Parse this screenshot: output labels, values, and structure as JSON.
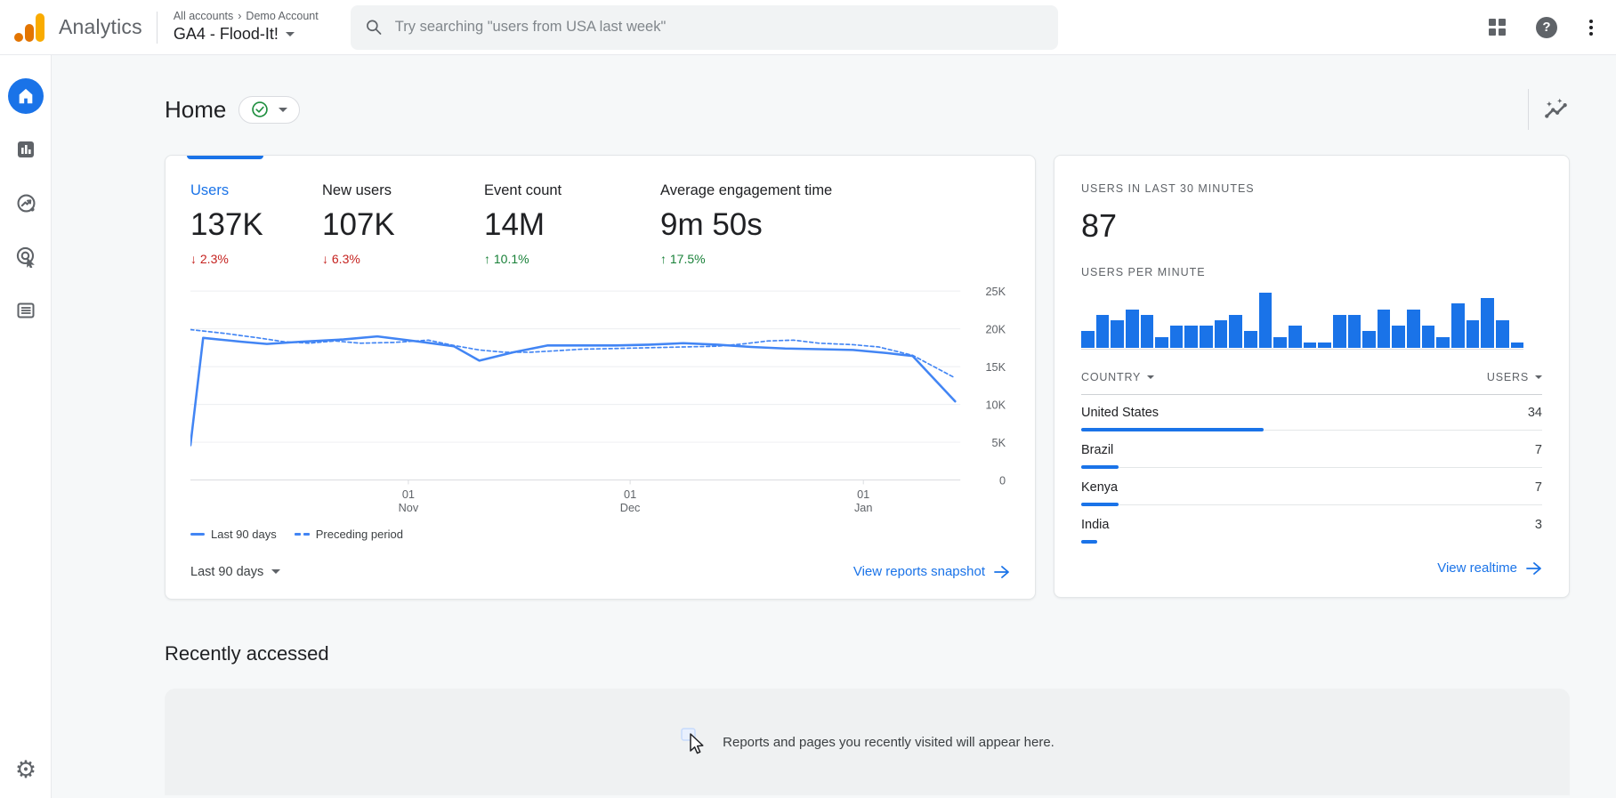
{
  "topbar": {
    "product": "Analytics",
    "breadcrumb": [
      "All accounts",
      "Demo Account"
    ],
    "breadcrumb_separator": "›",
    "property": "GA4 - Flood-It!",
    "search_placeholder": "Try searching \"users from USA last week\"",
    "help_glyph": "?"
  },
  "icons": {
    "gear_glyph": "⚙"
  },
  "page": {
    "title": "Home"
  },
  "overview_card": {
    "metrics": [
      {
        "label": "Users",
        "value": "137K",
        "delta": "2.3%",
        "direction": "down",
        "active": true
      },
      {
        "label": "New users",
        "value": "107K",
        "delta": "6.3%",
        "direction": "down",
        "active": false
      },
      {
        "label": "Event count",
        "value": "14M",
        "delta": "10.1%",
        "direction": "up",
        "active": false
      },
      {
        "label": "Average engagement time",
        "value": "9m 50s",
        "delta": "17.5%",
        "direction": "up",
        "active": false
      }
    ],
    "legend": [
      "Last 90 days",
      "Preceding period"
    ],
    "date_range": "Last 90 days",
    "link": "View reports snapshot"
  },
  "realtime_card": {
    "title": "USERS IN LAST 30 MINUTES",
    "value": "87",
    "subtitle": "USERS PER MINUTE",
    "table": {
      "columns": [
        "COUNTRY",
        "USERS"
      ],
      "rows": [
        {
          "country": "United States",
          "users": 34
        },
        {
          "country": "Brazil",
          "users": 7
        },
        {
          "country": "Kenya",
          "users": 7
        },
        {
          "country": "India",
          "users": 3
        }
      ]
    },
    "link": "View realtime"
  },
  "recent": {
    "title": "Recently accessed",
    "empty_message": "Reports and pages you recently visited will appear here."
  },
  "colors": {
    "accent_blue": "#1a73e8",
    "line_blue": "#4285f4",
    "delta_red": "#c5221f",
    "delta_green": "#188038",
    "icon_gray": "#5f6368"
  },
  "chart_data": [
    {
      "type": "line",
      "title": "Users, last 90 days vs preceding period",
      "ylim": [
        0,
        25000
      ],
      "yticks": [
        {
          "label": "0",
          "value": 0
        },
        {
          "label": "5K",
          "value": 5000
        },
        {
          "label": "10K",
          "value": 10000
        },
        {
          "label": "15K",
          "value": 15000
        },
        {
          "label": "20K",
          "value": 20000
        },
        {
          "label": "25K",
          "value": 25000
        }
      ],
      "xlim": [
        0,
        90
      ],
      "xticks": [
        {
          "label": "01 Nov",
          "pos": 0.285
        },
        {
          "label": "01 Dec",
          "pos": 0.575
        },
        {
          "label": "01 Jan",
          "pos": 0.88
        }
      ],
      "grid": true,
      "legend_position": "bottom",
      "series": [
        {
          "name": "Last 90 days",
          "style": "solid",
          "color": "#4285f4",
          "points": [
            [
              0,
              4600
            ],
            [
              1.5,
              18800
            ],
            [
              6,
              18300
            ],
            [
              9,
              18000
            ],
            [
              13,
              18300
            ],
            [
              18,
              18600
            ],
            [
              22,
              19000
            ],
            [
              27,
              18300
            ],
            [
              31,
              17700
            ],
            [
              34,
              15800
            ],
            [
              38,
              16900
            ],
            [
              42,
              17800
            ],
            [
              46,
              17800
            ],
            [
              50,
              17800
            ],
            [
              54,
              17900
            ],
            [
              58,
              18100
            ],
            [
              62,
              17900
            ],
            [
              66,
              17600
            ],
            [
              70,
              17400
            ],
            [
              74,
              17300
            ],
            [
              78,
              17200
            ],
            [
              82,
              16800
            ],
            [
              85,
              16400
            ],
            [
              90,
              10400
            ]
          ]
        },
        {
          "name": "Preceding period",
          "style": "dashed",
          "color": "#4285f4",
          "points": [
            [
              0,
              19900
            ],
            [
              4,
              19400
            ],
            [
              8,
              18800
            ],
            [
              11,
              18300
            ],
            [
              14,
              18100
            ],
            [
              17,
              18400
            ],
            [
              20,
              18100
            ],
            [
              24,
              18200
            ],
            [
              28,
              18500
            ],
            [
              31,
              17800
            ],
            [
              34,
              17200
            ],
            [
              37,
              16900
            ],
            [
              40,
              16900
            ],
            [
              43,
              17100
            ],
            [
              46,
              17300
            ],
            [
              50,
              17400
            ],
            [
              54,
              17500
            ],
            [
              58,
              17600
            ],
            [
              62,
              17700
            ],
            [
              65,
              18000
            ],
            [
              68,
              18400
            ],
            [
              71,
              18500
            ],
            [
              74,
              18100
            ],
            [
              78,
              17900
            ],
            [
              81,
              17600
            ],
            [
              85,
              16500
            ],
            [
              87,
              15300
            ],
            [
              90,
              13500
            ]
          ]
        }
      ]
    },
    {
      "type": "bar",
      "title": "Users per minute (last 30 minutes)",
      "values": [
        3,
        6,
        5,
        7,
        6,
        2,
        4,
        4,
        4,
        5,
        6,
        3,
        10,
        2,
        4,
        1,
        1,
        6,
        6,
        3,
        7,
        4,
        7,
        4,
        2,
        8,
        5,
        9,
        5,
        1
      ],
      "ylim": [
        0,
        10
      ],
      "color": "#1a73e8"
    }
  ]
}
